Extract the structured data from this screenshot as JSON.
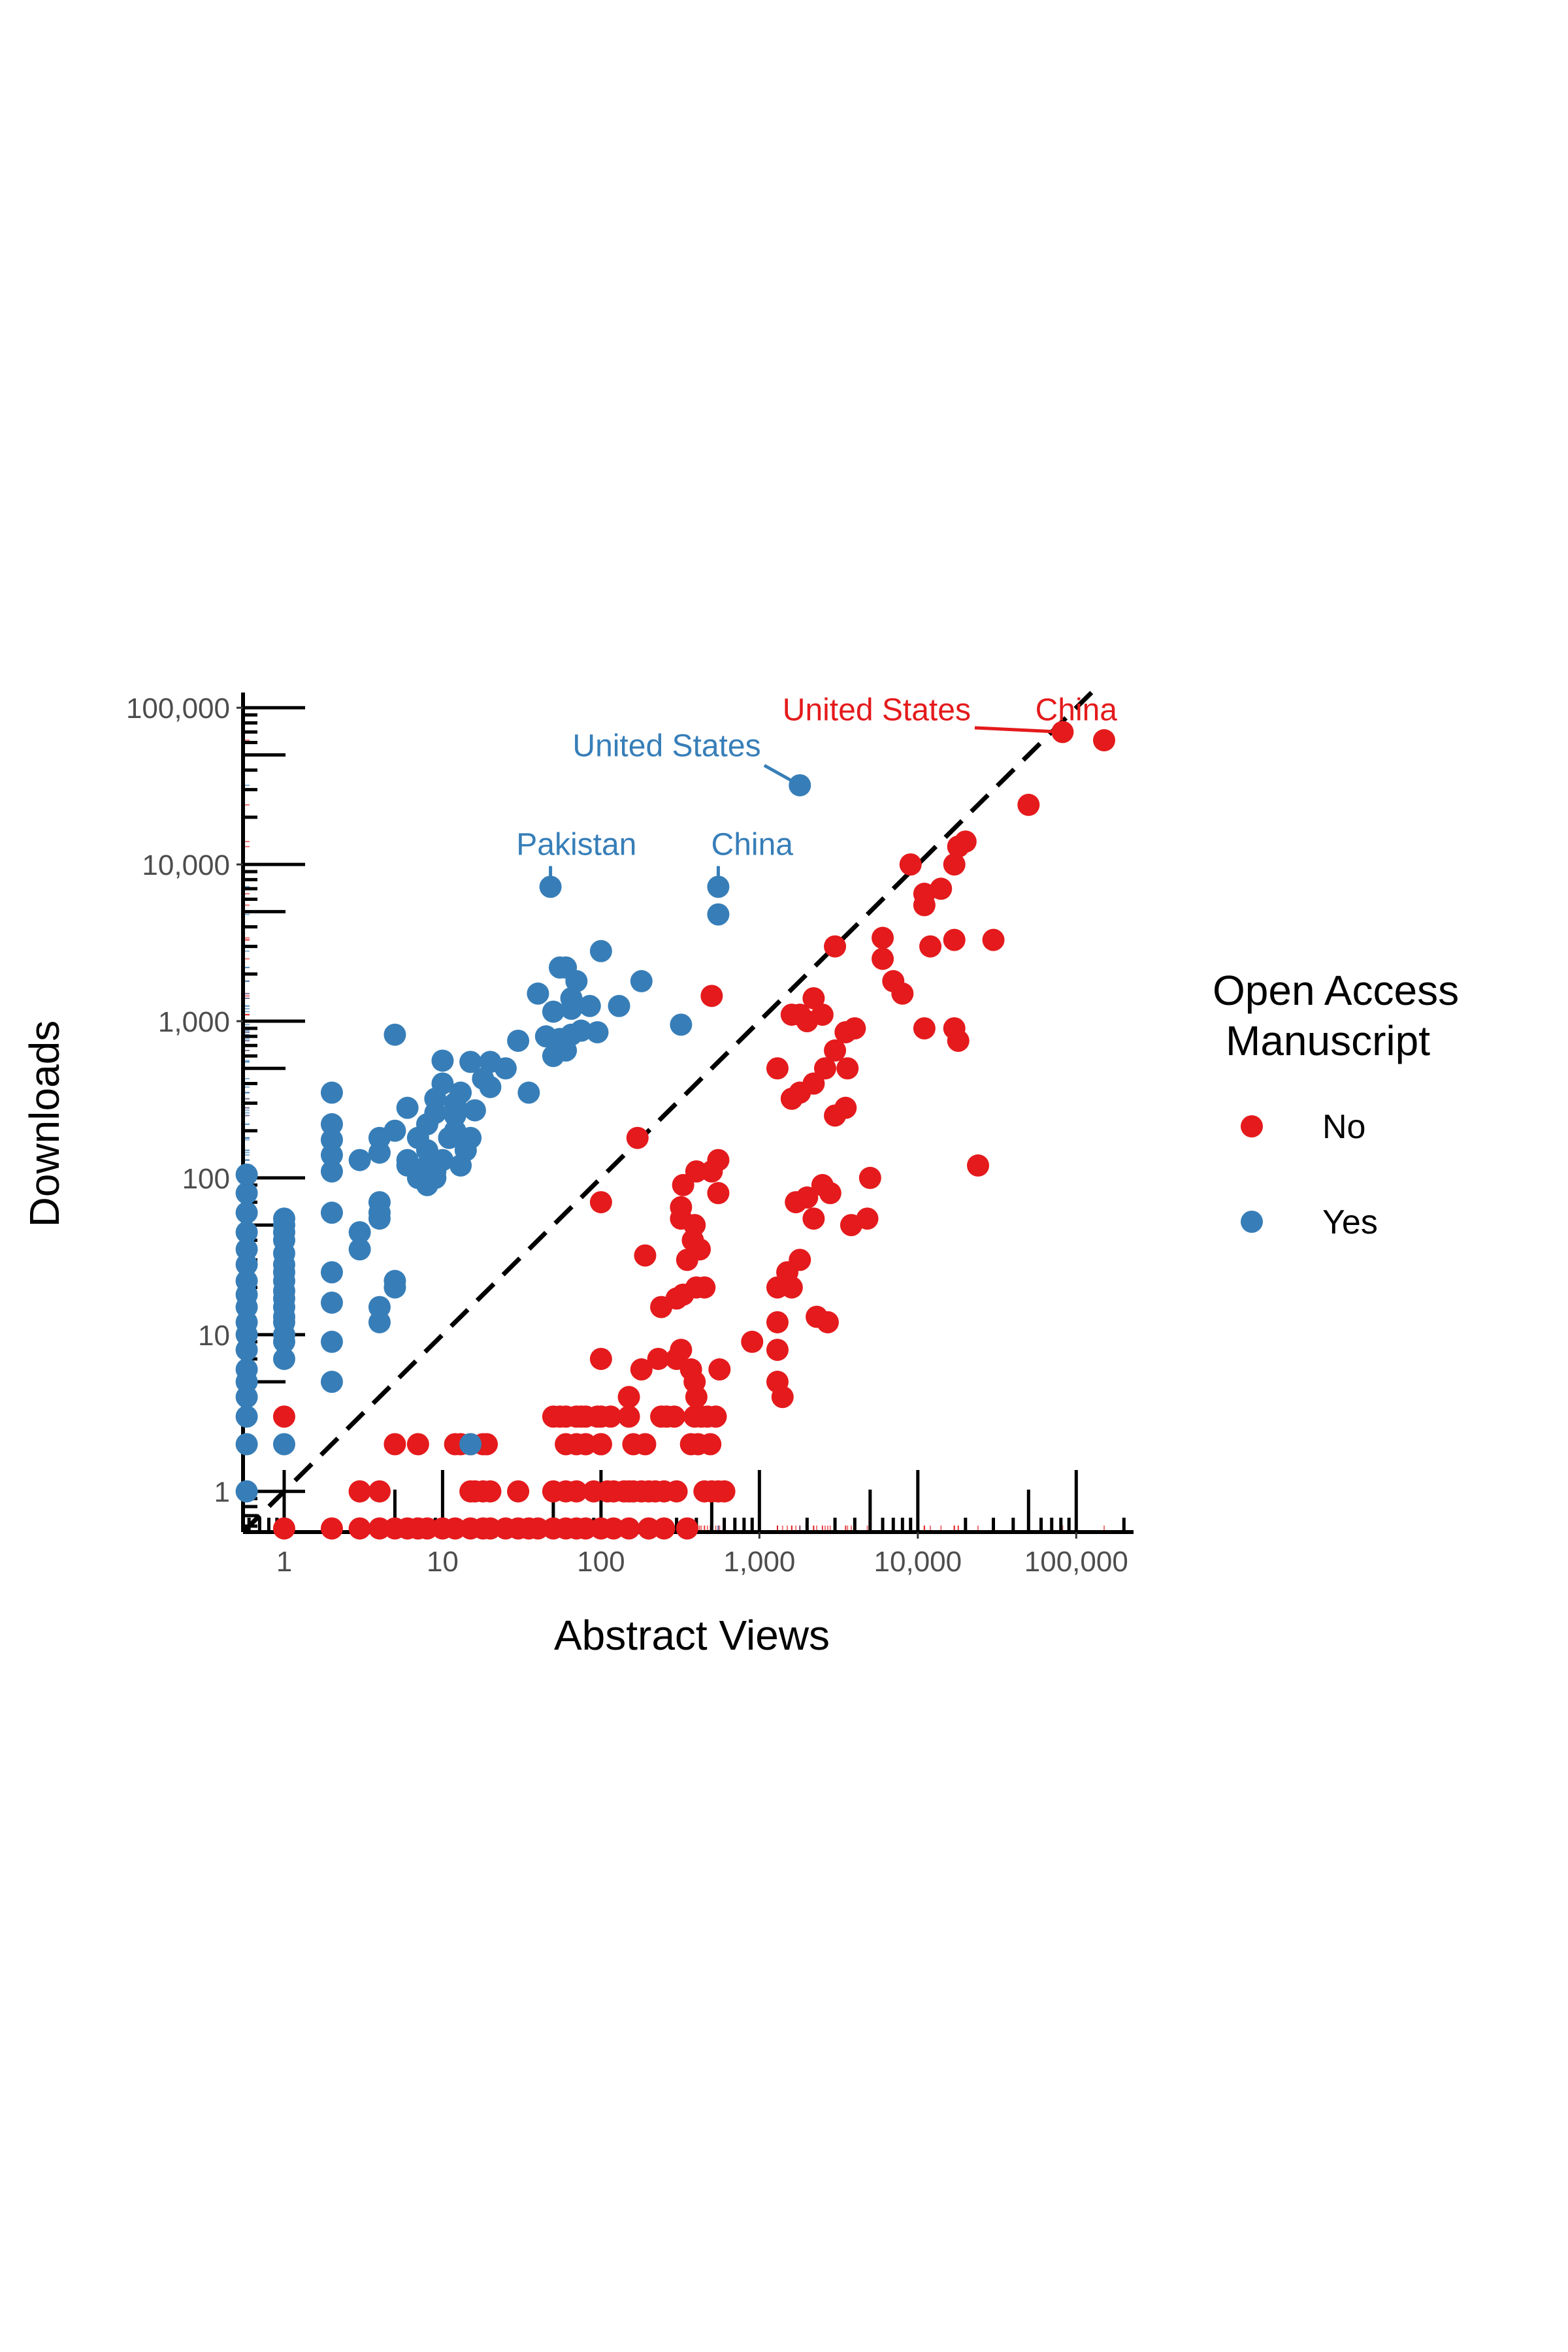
{
  "chart_data": {
    "type": "scatter",
    "title": "",
    "xlabel": "Abstract Views",
    "ylabel": "Downloads",
    "xscale": "log10",
    "yscale": "log10",
    "xlim": [
      0.55,
      230000
    ],
    "ylim": [
      0.55,
      125000
    ],
    "x_ticks": [
      {
        "value": 1,
        "label": "1"
      },
      {
        "value": 10,
        "label": "10"
      },
      {
        "value": 100,
        "label": "100"
      },
      {
        "value": 1000,
        "label": "1,000"
      },
      {
        "value": 10000,
        "label": "10,000"
      },
      {
        "value": 100000,
        "label": "100,000"
      }
    ],
    "y_ticks": [
      {
        "value": 1,
        "label": "1"
      },
      {
        "value": 10,
        "label": "10"
      },
      {
        "value": 100,
        "label": "100"
      },
      {
        "value": 1000,
        "label": "1,000"
      },
      {
        "value": 10000,
        "label": "10,000"
      },
      {
        "value": 100000,
        "label": "100,000"
      }
    ],
    "reference_line": {
      "type": "y = x",
      "style": "dashed",
      "color": "#000000"
    },
    "grid": false,
    "rug": true,
    "legend": {
      "title_lines": [
        "Open Access",
        "Manuscript"
      ],
      "placement": "right",
      "entries": [
        {
          "label": "No",
          "color": "#e41a1c"
        },
        {
          "label": "Yes",
          "color": "#377eb8"
        }
      ]
    },
    "series": [
      {
        "name": "No",
        "color": "#e41a1c",
        "points": [
          [
            150000,
            62000
          ],
          [
            82000,
            70000
          ],
          [
            50000,
            24000
          ],
          [
            24000,
            120
          ],
          [
            30000,
            3300
          ],
          [
            20000,
            14000
          ],
          [
            18000,
            13000
          ],
          [
            17000,
            10000
          ],
          [
            18000,
            750
          ],
          [
            17000,
            900
          ],
          [
            17000,
            3300
          ],
          [
            14000,
            7000
          ],
          [
            12000,
            3000
          ],
          [
            11000,
            5500
          ],
          [
            11000,
            6500
          ],
          [
            9000,
            10000
          ],
          [
            8000,
            1500
          ],
          [
            11000,
            900
          ],
          [
            7000,
            1800
          ],
          [
            6000,
            3400
          ],
          [
            6000,
            2500
          ],
          [
            5000,
            100
          ],
          [
            4000,
            900
          ],
          [
            3500,
            850
          ],
          [
            3000,
            3000
          ],
          [
            2500,
            1100
          ],
          [
            2200,
            1400
          ],
          [
            2000,
            1000
          ],
          [
            1800,
            1100
          ],
          [
            1600,
            1100
          ],
          [
            3600,
            500
          ],
          [
            3000,
            650
          ],
          [
            2600,
            500
          ],
          [
            2200,
            400
          ],
          [
            1800,
            350
          ],
          [
            1600,
            320
          ],
          [
            3000,
            250
          ],
          [
            3500,
            280
          ],
          [
            1300,
            500
          ],
          [
            2500,
            90
          ],
          [
            2000,
            75
          ],
          [
            1800,
            30
          ],
          [
            1600,
            20
          ],
          [
            1500,
            25
          ],
          [
            1300,
            20
          ],
          [
            2800,
            80
          ],
          [
            3800,
            50
          ],
          [
            4800,
            55
          ],
          [
            2200,
            55
          ],
          [
            1700,
            70
          ],
          [
            2300,
            13
          ],
          [
            2700,
            12
          ],
          [
            1300,
            12
          ],
          [
            1300,
            8
          ],
          [
            1300,
            5
          ],
          [
            1400,
            4
          ],
          [
            900,
            9
          ],
          [
            500,
            1450
          ],
          [
            550,
            130
          ],
          [
            550,
            80
          ],
          [
            500,
            110
          ],
          [
            400,
            110
          ],
          [
            330,
            90
          ],
          [
            320,
            65
          ],
          [
            320,
            55
          ],
          [
            390,
            50
          ],
          [
            380,
            40
          ],
          [
            420,
            35
          ],
          [
            350,
            30
          ],
          [
            300,
            17
          ],
          [
            330,
            18
          ],
          [
            400,
            20
          ],
          [
            450,
            20
          ],
          [
            240,
            15
          ],
          [
            170,
            180
          ],
          [
            190,
            32
          ],
          [
            180,
            6
          ],
          [
            230,
            7
          ],
          [
            320,
            8
          ],
          [
            300,
            7
          ],
          [
            370,
            6
          ],
          [
            390,
            5
          ],
          [
            400,
            4
          ],
          [
            560,
            6
          ],
          [
            150,
            4
          ],
          [
            115,
            3
          ],
          [
            100,
            7
          ],
          [
            100,
            70
          ],
          [
            240,
            3
          ],
          [
            260,
            3
          ],
          [
            290,
            3
          ],
          [
            390,
            3
          ],
          [
            430,
            3
          ],
          [
            470,
            3
          ],
          [
            530,
            3
          ],
          [
            490,
            2
          ],
          [
            410,
            2
          ],
          [
            370,
            2
          ],
          [
            190,
            2
          ],
          [
            160,
            2
          ],
          [
            100,
            2
          ],
          [
            80,
            2
          ],
          [
            70,
            2
          ],
          [
            60,
            2
          ],
          [
            50,
            3
          ],
          [
            55,
            3
          ],
          [
            60,
            3
          ],
          [
            70,
            3
          ],
          [
            75,
            3
          ],
          [
            80,
            3
          ],
          [
            95,
            3
          ],
          [
            100,
            3
          ],
          [
            50,
            1
          ],
          [
            60,
            1
          ],
          [
            70,
            1
          ],
          [
            90,
            1
          ],
          [
            110,
            1
          ],
          [
            120,
            1
          ],
          [
            140,
            1
          ],
          [
            150,
            1
          ],
          [
            160,
            1
          ],
          [
            180,
            1
          ],
          [
            200,
            1
          ],
          [
            220,
            1
          ],
          [
            250,
            1
          ],
          [
            300,
            1
          ],
          [
            450,
            1
          ],
          [
            500,
            1
          ],
          [
            550,
            1
          ],
          [
            600,
            1
          ],
          [
            30,
            1
          ],
          [
            20,
            1
          ],
          [
            18,
            1
          ],
          [
            16,
            1
          ],
          [
            15,
            1
          ],
          [
            15,
            2
          ],
          [
            13,
            2
          ],
          [
            12,
            2
          ],
          [
            18,
            2
          ],
          [
            19,
            2
          ],
          [
            7,
            2
          ],
          [
            5,
            2
          ],
          [
            4,
            1
          ],
          [
            3,
            1
          ],
          [
            3,
            1
          ],
          [
            1,
            3
          ],
          [
            1,
            0.58
          ],
          [
            2,
            0.58
          ],
          [
            3,
            0.58
          ],
          [
            4,
            0.58
          ],
          [
            5,
            0.58
          ],
          [
            6,
            0.58
          ],
          [
            7,
            0.58
          ],
          [
            8,
            0.58
          ],
          [
            10,
            0.58
          ],
          [
            12,
            0.58
          ],
          [
            15,
            0.58
          ],
          [
            18,
            0.58
          ],
          [
            20,
            0.58
          ],
          [
            25,
            0.58
          ],
          [
            30,
            0.58
          ],
          [
            35,
            0.58
          ],
          [
            40,
            0.58
          ],
          [
            50,
            0.58
          ],
          [
            60,
            0.58
          ],
          [
            70,
            0.58
          ],
          [
            80,
            0.58
          ],
          [
            100,
            0.58
          ],
          [
            120,
            0.58
          ],
          [
            150,
            0.58
          ],
          [
            200,
            0.58
          ],
          [
            250,
            0.58
          ],
          [
            350,
            0.58
          ],
          [
            100,
            2
          ],
          [
            150,
            3
          ]
        ]
      },
      {
        "name": "Yes",
        "color": "#377eb8",
        "points": [
          [
            1800,
            32000
          ],
          [
            550,
            7200
          ],
          [
            550,
            4800
          ],
          [
            48,
            7200
          ],
          [
            320,
            950
          ],
          [
            180,
            1800
          ],
          [
            100,
            2800
          ],
          [
            130,
            1250
          ],
          [
            85,
            1250
          ],
          [
            95,
            850
          ],
          [
            65,
            1400
          ],
          [
            70,
            1800
          ],
          [
            65,
            1200
          ],
          [
            60,
            2200
          ],
          [
            55,
            2200
          ],
          [
            50,
            1150
          ],
          [
            55,
            770
          ],
          [
            65,
            820
          ],
          [
            75,
            870
          ],
          [
            60,
            650
          ],
          [
            50,
            600
          ],
          [
            40,
            1500
          ],
          [
            45,
            800
          ],
          [
            30,
            750
          ],
          [
            25,
            500
          ],
          [
            20,
            550
          ],
          [
            18,
            430
          ],
          [
            20,
            380
          ],
          [
            15,
            550
          ],
          [
            13,
            350
          ],
          [
            12,
            250
          ],
          [
            10,
            560
          ],
          [
            10,
            400
          ],
          [
            9,
            320
          ],
          [
            9,
            260
          ],
          [
            12,
            300
          ],
          [
            8,
            220
          ],
          [
            7,
            180
          ],
          [
            6,
            120
          ],
          [
            6,
            130
          ],
          [
            6,
            280
          ],
          [
            5,
            820
          ],
          [
            5,
            200
          ],
          [
            4,
            180
          ],
          [
            4,
            145
          ],
          [
            8,
            150
          ],
          [
            8,
            120
          ],
          [
            9,
            100
          ],
          [
            10,
            130
          ],
          [
            11,
            180
          ],
          [
            12,
            200
          ],
          [
            15,
            180
          ],
          [
            14,
            150
          ],
          [
            13,
            120
          ],
          [
            16,
            270
          ],
          [
            7,
            100
          ],
          [
            8,
            90
          ],
          [
            9,
            110
          ],
          [
            35,
            350
          ],
          [
            3,
            130
          ],
          [
            2,
            350
          ],
          [
            2,
            220
          ],
          [
            2,
            175
          ],
          [
            2,
            140
          ],
          [
            2,
            110
          ],
          [
            2,
            60
          ],
          [
            2,
            25
          ],
          [
            2,
            16
          ],
          [
            2,
            9
          ],
          [
            2,
            5
          ],
          [
            3,
            45
          ],
          [
            3,
            35
          ],
          [
            4,
            60
          ],
          [
            4,
            70
          ],
          [
            4,
            55
          ],
          [
            4,
            15
          ],
          [
            4,
            12
          ],
          [
            5,
            22
          ],
          [
            5,
            20
          ],
          [
            1,
            55
          ],
          [
            1,
            50
          ],
          [
            1,
            45
          ],
          [
            1,
            40
          ],
          [
            1,
            33
          ],
          [
            1,
            28
          ],
          [
            1,
            25
          ],
          [
            1,
            22
          ],
          [
            1,
            19
          ],
          [
            1,
            17
          ],
          [
            1,
            15
          ],
          [
            1,
            13
          ],
          [
            1,
            12
          ],
          [
            1,
            10
          ],
          [
            1,
            9
          ],
          [
            1,
            7
          ],
          [
            1,
            2
          ],
          [
            0.58,
            105
          ],
          [
            0.58,
            80
          ],
          [
            0.58,
            60
          ],
          [
            0.58,
            45
          ],
          [
            0.58,
            35
          ],
          [
            0.58,
            28
          ],
          [
            0.58,
            22
          ],
          [
            0.58,
            18
          ],
          [
            0.58,
            15
          ],
          [
            0.58,
            12
          ],
          [
            0.58,
            10
          ],
          [
            0.58,
            8
          ],
          [
            0.58,
            6
          ],
          [
            0.58,
            5
          ],
          [
            0.58,
            4
          ],
          [
            0.58,
            3
          ],
          [
            0.58,
            2
          ],
          [
            0.58,
            1
          ],
          [
            15,
            2
          ]
        ]
      }
    ],
    "annotations": [
      {
        "text": "United States",
        "series": "No",
        "point": [
          82000,
          70000
        ],
        "text_pos": [
          5500,
          83000
        ]
      },
      {
        "text": "China",
        "series": "No",
        "point": [
          150000,
          62000
        ],
        "text_pos": [
          100000,
          83000
        ]
      },
      {
        "text": "United States",
        "series": "Yes",
        "point": [
          1800,
          32000
        ],
        "text_pos": [
          260,
          49000
        ]
      },
      {
        "text": "Pakistan",
        "series": "Yes",
        "point": [
          48,
          7200
        ],
        "text_pos": [
          70,
          11500
        ]
      },
      {
        "text": "China",
        "series": "Yes",
        "point": [
          550,
          7200
        ],
        "text_pos": [
          900,
          11500
        ]
      }
    ]
  }
}
